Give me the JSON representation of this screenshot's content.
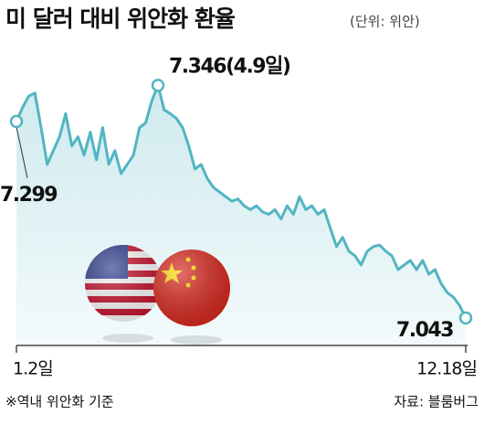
{
  "chart_data": {
    "type": "line",
    "title": "미 달러 대비 위안화 환율",
    "subtitle": "(단위: 위안)",
    "categories": [
      "1.2일",
      null,
      null,
      null,
      null,
      null,
      null,
      null,
      null,
      null,
      null,
      null,
      null,
      null,
      null,
      null,
      null,
      null,
      null,
      null,
      null,
      null,
      null,
      null,
      null,
      null,
      null,
      null,
      null,
      null,
      null,
      null,
      null,
      null,
      null,
      null,
      null,
      null,
      null,
      null,
      null,
      null,
      null,
      null,
      null,
      null,
      null,
      null,
      null,
      null,
      null,
      null,
      null,
      null,
      null,
      null,
      null,
      null,
      null,
      null,
      null,
      null,
      null,
      null,
      null,
      null,
      null,
      null,
      null,
      null,
      null,
      null,
      null,
      "12.18일"
    ],
    "values": [
      7.299,
      7.317,
      7.332,
      7.336,
      7.291,
      7.243,
      7.261,
      7.279,
      7.309,
      7.267,
      7.279,
      7.255,
      7.285,
      7.249,
      7.291,
      7.243,
      7.261,
      7.231,
      7.243,
      7.255,
      7.291,
      7.297,
      7.326,
      7.346,
      7.314,
      7.309,
      7.303,
      7.291,
      7.267,
      7.237,
      7.243,
      7.225,
      7.213,
      7.207,
      7.201,
      7.195,
      7.198,
      7.189,
      7.184,
      7.189,
      7.181,
      7.178,
      7.184,
      7.172,
      7.189,
      7.178,
      7.201,
      7.184,
      7.189,
      7.178,
      7.184,
      7.16,
      7.136,
      7.148,
      7.13,
      7.124,
      7.112,
      7.13,
      7.136,
      7.138,
      7.13,
      7.124,
      7.106,
      7.112,
      7.118,
      7.106,
      7.118,
      7.1,
      7.106,
      7.088,
      7.076,
      7.07,
      7.059,
      7.043
    ],
    "value_labels": [
      "7.299",
      null,
      null,
      null,
      null,
      null,
      null,
      null,
      null,
      null,
      null,
      null,
      null,
      null,
      null,
      null,
      null,
      null,
      null,
      null,
      null,
      null,
      null,
      "7.346(4.9일)",
      null,
      null,
      null,
      null,
      null,
      null,
      null,
      null,
      null,
      null,
      null,
      null,
      null,
      null,
      null,
      null,
      null,
      null,
      null,
      null,
      null,
      null,
      null,
      null,
      null,
      null,
      null,
      null,
      null,
      null,
      null,
      null,
      null,
      null,
      null,
      null,
      null,
      null,
      null,
      null,
      null,
      null,
      null,
      null,
      null,
      null,
      null,
      null,
      null,
      "7.043"
    ],
    "color": "#52b5c2",
    "ylim": [
      7.0,
      7.4
    ],
    "footnote": "※역내 위안화 기준",
    "source": "자료: 블룸버그"
  }
}
